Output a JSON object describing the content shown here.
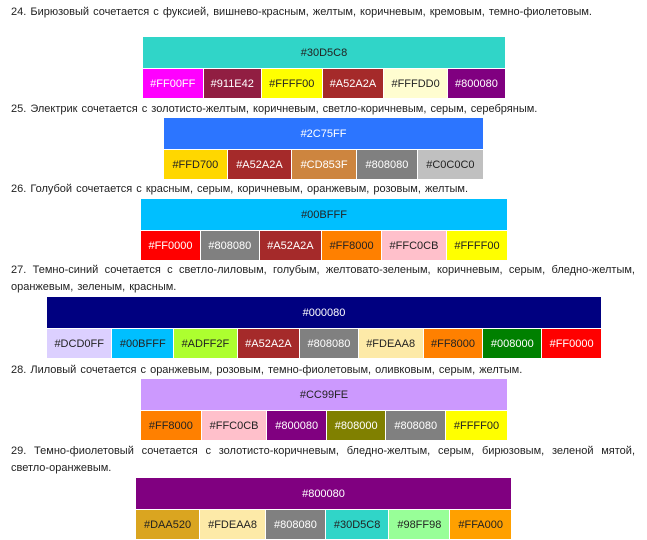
{
  "sections": [
    {
      "text": "24.  Бирюзовый  сочетается  с  фуксией,  вишнево-красным,  желтым,  коричневым,  кремовым,  темно-фиолетовым.",
      "main": {
        "label": "#30D5C8",
        "bg": "#30D5C8",
        "fg": "#222222"
      },
      "swatches": [
        {
          "label": "#FF00FF",
          "bg": "#FF00FF",
          "fg": "#ffffff"
        },
        {
          "label": "#911E42",
          "bg": "#911E42",
          "fg": "#ffffff"
        },
        {
          "label": "#FFFF00",
          "bg": "#FFFF00",
          "fg": "#222222"
        },
        {
          "label": "#A52A2A",
          "bg": "#A52A2A",
          "fg": "#ffffff"
        },
        {
          "label": "#FFFDD0",
          "bg": "#FFFDD0",
          "fg": "#222222"
        },
        {
          "label": "#800080",
          "bg": "#800080",
          "fg": "#ffffff"
        }
      ]
    },
    {
      "text": "25.  Электрик сочетается с золотисто-желтым, коричневым, светло-коричневым, серым, серебряным.",
      "main": {
        "label": "#2C75FF",
        "bg": "#2C75FF",
        "fg": "#ffffff"
      },
      "swatches": [
        {
          "label": "#FFD700",
          "bg": "#FFD700",
          "fg": "#222222"
        },
        {
          "label": "#A52A2A",
          "bg": "#A52A2A",
          "fg": "#ffffff"
        },
        {
          "label": "#CD853F",
          "bg": "#CD853F",
          "fg": "#ffffff"
        },
        {
          "label": "#808080",
          "bg": "#808080",
          "fg": "#ffffff"
        },
        {
          "label": "#C0C0C0",
          "bg": "#C0C0C0",
          "fg": "#222222"
        }
      ]
    },
    {
      "text": "26.  Голубой сочетается с красным, серым, коричневым, оранжевым, розовым, желтым.",
      "main": {
        "label": "#00BFFF",
        "bg": "#00BFFF",
        "fg": "#222222"
      },
      "swatches": [
        {
          "label": "#FF0000",
          "bg": "#FF0000",
          "fg": "#ffffff"
        },
        {
          "label": "#808080",
          "bg": "#808080",
          "fg": "#ffffff"
        },
        {
          "label": "#A52A2A",
          "bg": "#A52A2A",
          "fg": "#ffffff"
        },
        {
          "label": "#FF8000",
          "bg": "#FF8000",
          "fg": "#222222"
        },
        {
          "label": "#FFC0CB",
          "bg": "#FFC0CB",
          "fg": "#222222"
        },
        {
          "label": "#FFFF00",
          "bg": "#FFFF00",
          "fg": "#222222"
        }
      ]
    },
    {
      "text": "27.  Темно-синий  сочетается  с  светло-лиловым,  голубым,  желтовато-зеленым,  коричневым,  серым,  бледно-желтым, оранжевым, зеленым, красным.",
      "main": {
        "label": "#000080",
        "bg": "#000080",
        "fg": "#ffffff"
      },
      "swatches": [
        {
          "label": "#DCD0FF",
          "bg": "#DCD0FF",
          "fg": "#222222"
        },
        {
          "label": "#00BFFF",
          "bg": "#00BFFF",
          "fg": "#222222"
        },
        {
          "label": "#ADFF2F",
          "bg": "#ADFF2F",
          "fg": "#222222"
        },
        {
          "label": "#A52A2A",
          "bg": "#A52A2A",
          "fg": "#ffffff"
        },
        {
          "label": "#808080",
          "bg": "#808080",
          "fg": "#ffffff"
        },
        {
          "label": "#FDEAA8",
          "bg": "#FDEAA8",
          "fg": "#222222"
        },
        {
          "label": "#FF8000",
          "bg": "#FF8000",
          "fg": "#222222"
        },
        {
          "label": "#008000",
          "bg": "#008000",
          "fg": "#ffffff"
        },
        {
          "label": "#FF0000",
          "bg": "#FF0000",
          "fg": "#ffffff"
        }
      ]
    },
    {
      "text": "28.  Лиловый сочетается с оранжевым, розовым, темно-фиолетовым, оливковым, серым, желтым.",
      "main": {
        "label": "#CC99FE",
        "bg": "#CC99FE",
        "fg": "#222222"
      },
      "swatches": [
        {
          "label": "#FF8000",
          "bg": "#FF8000",
          "fg": "#222222"
        },
        {
          "label": "#FFC0CB",
          "bg": "#FFC0CB",
          "fg": "#222222"
        },
        {
          "label": "#800080",
          "bg": "#800080",
          "fg": "#ffffff"
        },
        {
          "label": "#808000",
          "bg": "#808000",
          "fg": "#ffffff"
        },
        {
          "label": "#808080",
          "bg": "#808080",
          "fg": "#ffffff"
        },
        {
          "label": "#FFFF00",
          "bg": "#FFFF00",
          "fg": "#222222"
        }
      ]
    },
    {
      "text": "29.  Темно-фиолетовый  сочетается  с  золотисто-коричневым,  бледно-желтым,  серым,  бирюзовым,  зеленой мятой, светло-оранжевым.",
      "main": {
        "label": "#800080",
        "bg": "#800080",
        "fg": "#ffffff"
      },
      "swatches": [
        {
          "label": "#DAA520",
          "bg": "#DAA520",
          "fg": "#222222"
        },
        {
          "label": "#FDEAA8",
          "bg": "#FDEAA8",
          "fg": "#222222"
        },
        {
          "label": "#808080",
          "bg": "#808080",
          "fg": "#ffffff"
        },
        {
          "label": "#30D5C8",
          "bg": "#30D5C8",
          "fg": "#222222"
        },
        {
          "label": "#98FF98",
          "bg": "#98FF98",
          "fg": "#222222"
        },
        {
          "label": "#FFA000",
          "bg": "#FFA000",
          "fg": "#222222"
        }
      ]
    }
  ]
}
